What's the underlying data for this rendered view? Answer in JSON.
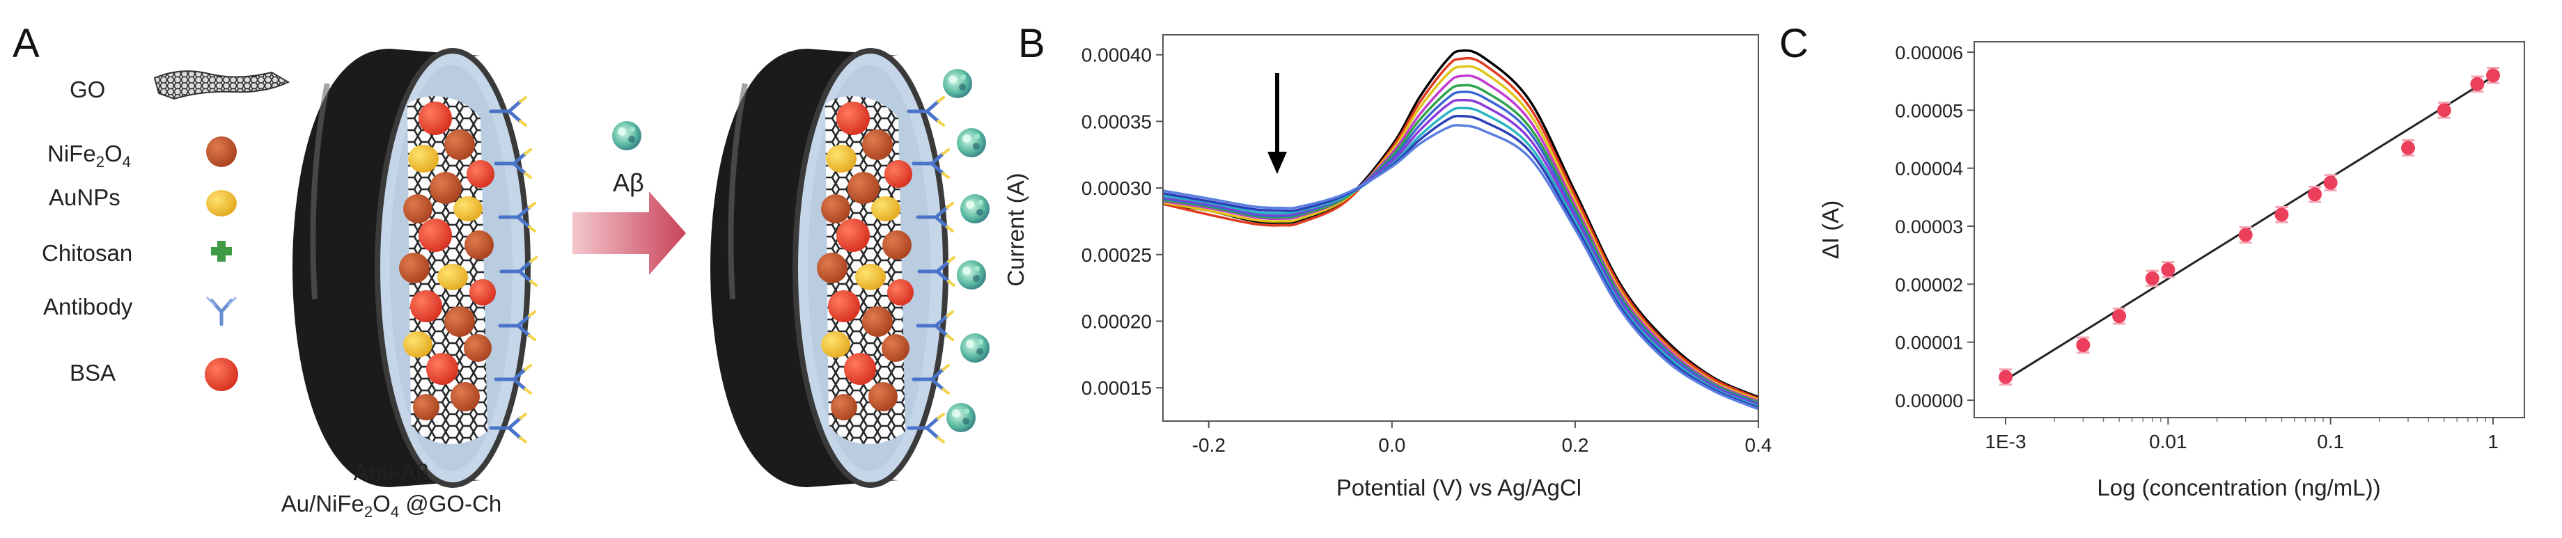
{
  "panels": {
    "a": {
      "label": "A",
      "legend": [
        {
          "name": "GO",
          "icon": "graphene-sheet-icon"
        },
        {
          "name": "NiFe",
          "sub1": "2",
          "mid": "O",
          "sub2": "4",
          "icon": "nife2o4-particle-icon",
          "color": "#b8512a"
        },
        {
          "name": "AuNPs",
          "icon": "gold-nanoparticle-icon",
          "color": "#f0c23a"
        },
        {
          "name": "Chitosan",
          "icon": "chitosan-cross-icon",
          "color": "#3f9a45"
        },
        {
          "name": "Antibody",
          "icon": "antibody-icon",
          "color": "#6a8fd0"
        },
        {
          "name": "BSA",
          "icon": "bsa-particle-icon",
          "color": "#e23b33"
        }
      ],
      "analyte_label": "Aβ",
      "caption_line1": "Anti-Aβ",
      "caption_line2_a": "Au/NiFe",
      "caption_line2_sub1": "2",
      "caption_line2_b": "O",
      "caption_line2_sub2": "4",
      "caption_line2_c": " @GO-Ch",
      "arrow_color": "#d24f5e"
    },
    "b": {
      "label": "B",
      "xlabel": "Potential (V) vs Ag/AgCl",
      "ylabel": "Current (A)"
    },
    "c": {
      "label": "C",
      "xlabel": "Log (concentration (ng/mL))",
      "ylabel": "ΔI (A)"
    }
  },
  "chart_data": [
    {
      "panel": "B",
      "type": "line",
      "xlabel": "Potential (V) vs Ag/AgCl",
      "ylabel": "Current (A)",
      "xlim": [
        -0.25,
        0.4
      ],
      "ylim": [
        0.000125,
        0.000415
      ],
      "x_ticks": [
        -0.2,
        0.0,
        0.2,
        0.4
      ],
      "x_tick_labels": [
        "-0.2",
        "0.0",
        "0.2",
        "0.4"
      ],
      "y_ticks": [
        0.00015,
        0.0002,
        0.00025,
        0.0003,
        0.00035,
        0.0004
      ],
      "y_tick_labels": [
        "0.00015",
        "0.00020",
        "0.00025",
        "0.00030",
        "0.00035",
        "0.00040"
      ],
      "annotation": "downward arrow near x = -0.11 (current decreases with concentration)",
      "x": [
        -0.25,
        -0.2,
        -0.15,
        -0.12,
        -0.1,
        -0.05,
        0.0,
        0.03,
        0.06,
        0.075,
        0.1,
        0.15,
        0.2,
        0.25,
        0.3,
        0.35,
        0.4
      ],
      "series": [
        {
          "color": "#000000",
          "values": [
            0.000288,
            0.000283,
            0.000275,
            0.000274,
            0.000276,
            0.000292,
            0.000332,
            0.000368,
            0.000396,
            0.000403,
            0.000398,
            0.000366,
            0.000297,
            0.000227,
            0.000185,
            0.000158,
            0.000143
          ]
        },
        {
          "color": "#e03a1e",
          "values": [
            0.000288,
            0.00028,
            0.000273,
            0.000272,
            0.000274,
            0.00029,
            0.00033,
            0.000364,
            0.000391,
            0.000397,
            0.000393,
            0.000361,
            0.000294,
            0.000225,
            0.000183,
            0.000157,
            0.000142
          ]
        },
        {
          "color": "#e0c419",
          "values": [
            0.000289,
            0.000283,
            0.000276,
            0.000275,
            0.000277,
            0.000292,
            0.000328,
            0.00036,
            0.000385,
            0.000391,
            0.000387,
            0.000356,
            0.00029,
            0.000222,
            0.000181,
            0.000155,
            0.000141
          ]
        },
        {
          "color": "#c23bd0",
          "values": [
            0.00029,
            0.000285,
            0.000278,
            0.000277,
            0.000279,
            0.000293,
            0.000326,
            0.000355,
            0.000378,
            0.000384,
            0.00038,
            0.000351,
            0.000287,
            0.00022,
            0.00018,
            0.000154,
            0.00014
          ]
        },
        {
          "color": "#2ea34a",
          "values": [
            0.000291,
            0.000286,
            0.000279,
            0.000278,
            0.00028,
            0.000293,
            0.000324,
            0.000351,
            0.000372,
            0.000377,
            0.000373,
            0.000346,
            0.000284,
            0.000218,
            0.000178,
            0.000153,
            0.000139
          ]
        },
        {
          "color": "#3b66d4",
          "values": [
            0.000292,
            0.000287,
            0.00028,
            0.000279,
            0.000281,
            0.000294,
            0.000322,
            0.000347,
            0.000367,
            0.000372,
            0.000368,
            0.000342,
            0.000281,
            0.000216,
            0.000177,
            0.000152,
            0.000138
          ]
        },
        {
          "color": "#8a3ad8",
          "values": [
            0.000293,
            0.000288,
            0.000281,
            0.00028,
            0.000282,
            0.000294,
            0.00032,
            0.000343,
            0.000362,
            0.000366,
            0.000362,
            0.000337,
            0.000278,
            0.000214,
            0.000175,
            0.000151,
            0.000137
          ]
        },
        {
          "color": "#27b3c0",
          "values": [
            0.000294,
            0.000289,
            0.000282,
            0.000281,
            0.000283,
            0.000294,
            0.000318,
            0.000339,
            0.000356,
            0.00036,
            0.000356,
            0.000332,
            0.000275,
            0.000212,
            0.000174,
            0.00015,
            0.000136
          ]
        },
        {
          "color": "#2a3fb8",
          "values": [
            0.000296,
            0.00029,
            0.000284,
            0.000283,
            0.000284,
            0.000295,
            0.000317,
            0.000336,
            0.000351,
            0.000354,
            0.00035,
            0.000328,
            0.000272,
            0.00021,
            0.000172,
            0.000149,
            0.000135
          ]
        },
        {
          "color": "#5a7fe0",
          "values": [
            0.000298,
            0.000292,
            0.000286,
            0.000285,
            0.000286,
            0.000296,
            0.000316,
            0.000333,
            0.000345,
            0.000347,
            0.000343,
            0.000323,
            0.000269,
            0.000208,
            0.00017,
            0.000148,
            0.000134
          ]
        }
      ]
    },
    {
      "panel": "C",
      "type": "scatter",
      "xscale": "log",
      "xlabel": "Log (concentration (ng/mL))",
      "ylabel": "ΔI (A)",
      "xlim": [
        0.001,
        1
      ],
      "ylim": [
        0,
        6e-05
      ],
      "x_ticks": [
        0.001,
        0.01,
        0.1,
        1
      ],
      "x_tick_labels": [
        "1E-3",
        "0.01",
        "0.1",
        "1"
      ],
      "y_ticks": [
        0,
        1e-05,
        2e-05,
        3e-05,
        4e-05,
        5e-05,
        6e-05
      ],
      "y_tick_labels": [
        "0.00000",
        "0.00001",
        "0.00002",
        "0.00003",
        "0.00004",
        "0.00005",
        "0.00006"
      ],
      "points": [
        {
          "x": 0.001,
          "y": 4e-06,
          "err": 1.3e-06
        },
        {
          "x": 0.003,
          "y": 9.5e-06,
          "err": 1.3e-06
        },
        {
          "x": 0.005,
          "y": 1.45e-05,
          "err": 1.3e-06
        },
        {
          "x": 0.008,
          "y": 2.1e-05,
          "err": 1.3e-06
        },
        {
          "x": 0.01,
          "y": 2.25e-05,
          "err": 1.3e-06
        },
        {
          "x": 0.03,
          "y": 2.85e-05,
          "err": 1.3e-06
        },
        {
          "x": 0.05,
          "y": 3.2e-05,
          "err": 1.3e-06
        },
        {
          "x": 0.08,
          "y": 3.55e-05,
          "err": 1.3e-06
        },
        {
          "x": 0.1,
          "y": 3.75e-05,
          "err": 1.3e-06
        },
        {
          "x": 0.3,
          "y": 4.35e-05,
          "err": 1.3e-06
        },
        {
          "x": 0.5,
          "y": 5e-05,
          "err": 1.3e-06
        },
        {
          "x": 0.8,
          "y": 5.45e-05,
          "err": 1.3e-06
        },
        {
          "x": 1,
          "y": 5.6e-05,
          "err": 1.3e-06
        }
      ],
      "fit_line": {
        "x": [
          0.001,
          1
        ],
        "y": [
          3.5e-06,
          5.58e-05
        ]
      },
      "marker_color": "#ec3f5c"
    }
  ]
}
